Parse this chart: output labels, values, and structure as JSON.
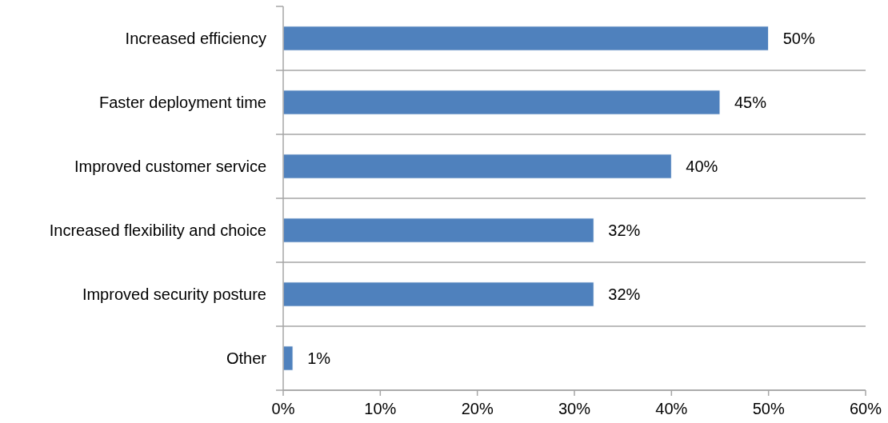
{
  "chart_data": {
    "type": "bar",
    "orientation": "horizontal",
    "categories": [
      "Increased efficiency",
      "Faster deployment time",
      "Improved customer service",
      "Increased flexibility and choice",
      "Improved security posture",
      "Other"
    ],
    "values": [
      50,
      45,
      40,
      32,
      32,
      1
    ],
    "color": "#4f81bd",
    "value_labels": [
      "50%",
      "45%",
      "40%",
      "32%",
      "32%",
      "1%"
    ],
    "xlim": [
      0,
      60
    ],
    "xticks": [
      {
        "value": 0,
        "label": "0%"
      },
      {
        "value": 10,
        "label": "10%"
      },
      {
        "value": 20,
        "label": "20%"
      },
      {
        "value": 30,
        "label": "30%"
      },
      {
        "value": 40,
        "label": "40%"
      },
      {
        "value": 50,
        "label": "50%"
      },
      {
        "value": 60,
        "label": "60%"
      }
    ],
    "grid": "y"
  }
}
